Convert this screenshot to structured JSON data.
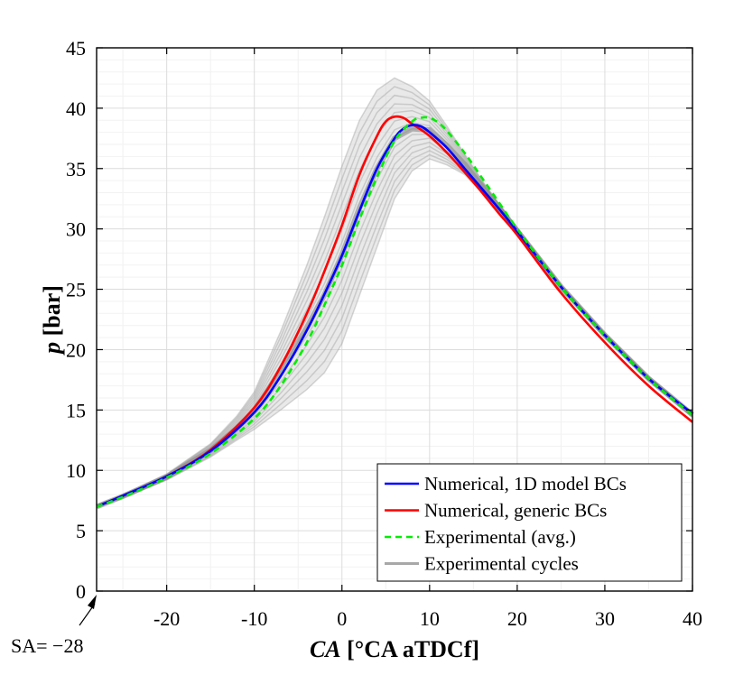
{
  "chart_data": {
    "type": "line",
    "xlabel": {
      "italic": "CA",
      "rest": " [°CA aTDCf]"
    },
    "ylabel": {
      "italic": "p",
      "rest": " [bar]"
    },
    "xlim": [
      -28,
      40
    ],
    "ylim": [
      0,
      45
    ],
    "x_ticks": [
      -20,
      -10,
      0,
      10,
      20,
      30,
      40
    ],
    "y_ticks": [
      0,
      5,
      10,
      15,
      20,
      25,
      30,
      35,
      40,
      45
    ],
    "grid": true,
    "legend_position": "bottom-right",
    "annotation": "SA= −28",
    "series": [
      {
        "name": "Numerical, 1D model BCs",
        "color": "#0000ff",
        "style": "solid",
        "x": [
          -28,
          -25,
          -20,
          -15,
          -10,
          -7,
          -4,
          -2,
          0,
          2,
          4,
          6,
          7,
          8,
          9,
          10,
          12,
          14,
          16,
          18,
          20,
          25,
          30,
          35,
          40
        ],
        "y": [
          7.0,
          7.9,
          9.5,
          11.6,
          14.8,
          17.8,
          21.6,
          24.6,
          27.8,
          31.5,
          35.0,
          37.5,
          38.3,
          38.6,
          38.5,
          38.0,
          36.7,
          35.0,
          33.3,
          31.6,
          29.8,
          25.2,
          21.2,
          17.6,
          14.7
        ]
      },
      {
        "name": "Numerical, generic BCs",
        "color": "#ff0000",
        "style": "solid",
        "x": [
          -28,
          -25,
          -20,
          -15,
          -10,
          -7,
          -4,
          -2,
          0,
          2,
          4,
          5,
          6,
          7,
          8,
          10,
          12,
          14,
          16,
          18,
          20,
          25,
          30,
          35,
          40
        ],
        "y": [
          7.0,
          7.9,
          9.5,
          11.7,
          15.2,
          18.6,
          23.0,
          26.5,
          30.3,
          34.5,
          37.7,
          38.9,
          39.3,
          39.2,
          38.7,
          37.7,
          36.3,
          34.7,
          33.0,
          31.2,
          29.5,
          24.7,
          20.6,
          17.0,
          14.0
        ]
      },
      {
        "name": "Experimental (avg.)",
        "color": "#00ee00",
        "style": "dashed",
        "x": [
          -28,
          -25,
          -20,
          -15,
          -10,
          -7,
          -4,
          -2,
          0,
          2,
          4,
          6,
          8,
          9,
          10,
          11,
          12,
          14,
          16,
          18,
          20,
          25,
          30,
          35,
          40
        ],
        "y": [
          7.0,
          7.8,
          9.4,
          11.4,
          14.3,
          17.0,
          20.6,
          23.7,
          27.0,
          30.8,
          34.3,
          37.3,
          38.9,
          39.2,
          39.2,
          38.8,
          38.1,
          36.3,
          34.2,
          32.1,
          30.0,
          25.2,
          21.2,
          17.6,
          14.6
        ]
      },
      {
        "name": "Experimental cycles",
        "color": "#aaaaaa",
        "style": "band",
        "x": [
          -28,
          -25,
          -20,
          -15,
          -12,
          -10,
          -7,
          -4,
          -2,
          0,
          2,
          4,
          6,
          8,
          10,
          12,
          14,
          16,
          18,
          20,
          25,
          30,
          35,
          40
        ],
        "y_low": [
          6.9,
          7.7,
          9.2,
          11.1,
          12.5,
          13.4,
          15.0,
          16.7,
          18.1,
          20.5,
          24.5,
          28.5,
          32.5,
          34.8,
          35.8,
          35.3,
          34.5,
          33.0,
          31.4,
          29.6,
          25.0,
          21.0,
          17.4,
          14.4
        ],
        "y_high": [
          7.1,
          8.0,
          9.7,
          12.2,
          14.5,
          16.5,
          21.5,
          27.0,
          31.0,
          35.2,
          39.0,
          41.5,
          42.5,
          41.8,
          40.6,
          38.5,
          36.2,
          34.0,
          32.0,
          30.1,
          25.4,
          21.4,
          17.8,
          14.8
        ]
      }
    ]
  }
}
